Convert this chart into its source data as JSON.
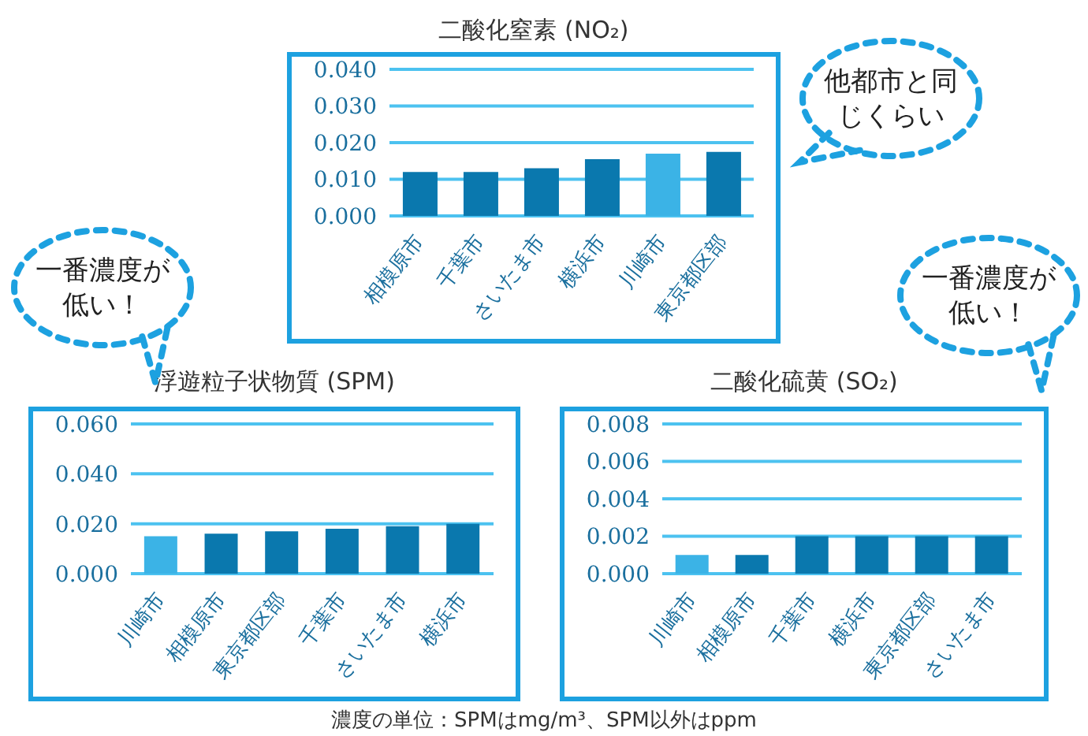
{
  "chart_data": [
    {
      "type": "bar",
      "title": "二酸化窒素 (NO₂)",
      "categories": [
        "相模原市",
        "千葉市",
        "さいたま市",
        "横浜市",
        "川崎市",
        "東京都区部"
      ],
      "values": [
        0.012,
        0.012,
        0.013,
        0.0155,
        0.017,
        0.0175
      ],
      "colors": [
        "#0a78ae",
        "#0a78ae",
        "#0a78ae",
        "#0a78ae",
        "#3bb3e6",
        "#0a78ae"
      ],
      "ylim": [
        0,
        0.04
      ],
      "yticks": [
        {
          "value": 0,
          "label": "0.000"
        },
        {
          "value": 0.01,
          "label": "0.010"
        },
        {
          "value": 0.02,
          "label": "0.020"
        },
        {
          "value": 0.03,
          "label": "0.030"
        },
        {
          "value": 0.04,
          "label": "0.040"
        }
      ],
      "grid": "y",
      "annotations": [
        "他都市と同じくらい"
      ]
    },
    {
      "type": "bar",
      "title": "浮遊粒子状物質 (SPM)",
      "categories": [
        "川崎市",
        "相模原市",
        "東京都区部",
        "千葉市",
        "さいたま市",
        "横浜市"
      ],
      "values": [
        0.015,
        0.016,
        0.017,
        0.018,
        0.019,
        0.02
      ],
      "colors": [
        "#3bb3e6",
        "#0a78ae",
        "#0a78ae",
        "#0a78ae",
        "#0a78ae",
        "#0a78ae"
      ],
      "ylim": [
        0,
        0.06
      ],
      "yticks": [
        {
          "value": 0,
          "label": "0.000"
        },
        {
          "value": 0.02,
          "label": "0.020"
        },
        {
          "value": 0.04,
          "label": "0.040"
        },
        {
          "value": 0.06,
          "label": "0.060"
        }
      ],
      "grid": "y",
      "annotations": [
        "一番濃度が低い！"
      ]
    },
    {
      "type": "bar",
      "title": "二酸化硫黄 (SO₂)",
      "categories": [
        "川崎市",
        "相模原市",
        "千葉市",
        "横浜市",
        "東京都区部",
        "さいたま市"
      ],
      "values": [
        0.001,
        0.001,
        0.002,
        0.002,
        0.002,
        0.002
      ],
      "colors": [
        "#3bb3e6",
        "#0a78ae",
        "#0a78ae",
        "#0a78ae",
        "#0a78ae",
        "#0a78ae"
      ],
      "ylim": [
        0,
        0.008
      ],
      "yticks": [
        {
          "value": 0,
          "label": "0.000"
        },
        {
          "value": 0.002,
          "label": "0.002"
        },
        {
          "value": 0.004,
          "label": "0.004"
        },
        {
          "value": 0.006,
          "label": "0.006"
        },
        {
          "value": 0.008,
          "label": "0.008"
        }
      ],
      "grid": "y",
      "annotations": [
        "一番濃度が低い！",
        "濃度の単位：SPMはmg/m³、SPM以外はppm"
      ]
    }
  ]
}
